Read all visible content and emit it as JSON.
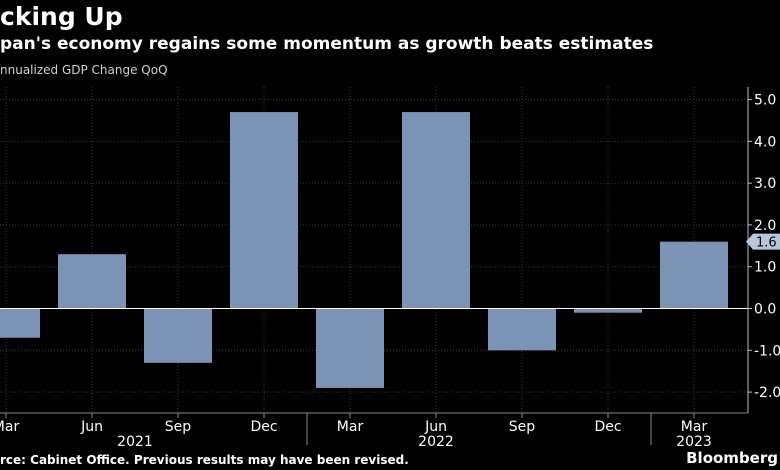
{
  "header": {
    "title": "cking Up",
    "subtitle": "pan's economy regains some momentum as growth beats estimates",
    "ylabel": "nnualized GDP Change QoQ"
  },
  "footer": {
    "source": "rce: Cabinet Office. Previous results may have been revised.",
    "brand": "Bloomberg"
  },
  "chart_data": {
    "type": "bar",
    "categories": [
      "Mar",
      "Jun",
      "Sep",
      "Dec",
      "Mar",
      "Jun",
      "Sep",
      "Dec",
      "Mar"
    ],
    "year_labels": [
      {
        "label": "2021",
        "category_index": 1.5
      },
      {
        "label": "2022",
        "category_index": 5
      },
      {
        "label": "2023",
        "category_index": 8
      }
    ],
    "values": [
      -0.7,
      1.3,
      -1.3,
      4.7,
      -1.9,
      4.7,
      -1.0,
      -0.1,
      1.6
    ],
    "ylim": [
      -2.5,
      5.3
    ],
    "yticks": [
      "5.0",
      "4.0",
      "3.0",
      "2.0",
      "1.0",
      "0.0",
      "-1.0",
      "-2.0"
    ],
    "ytick_values": [
      5,
      4,
      3,
      2,
      1,
      0,
      -1,
      -2
    ],
    "last_value_label": "1.6",
    "grid": true,
    "bar_color": "#7b93b5",
    "grid_color": "#3a3a3a",
    "axis_color": "#ffffff"
  }
}
